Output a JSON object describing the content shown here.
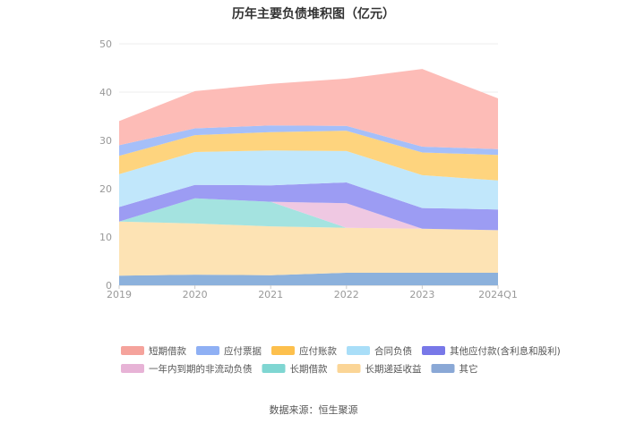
{
  "chart_data": {
    "type": "area",
    "stacked": true,
    "title": "历年主要负债堆积图（亿元）",
    "x": [
      "2019",
      "2020",
      "2021",
      "2022",
      "2023",
      "2024Q1"
    ],
    "ylim": [
      0,
      50
    ],
    "yticks": [
      0,
      10,
      20,
      30,
      40,
      50
    ],
    "grid": true,
    "legend_position": "bottom",
    "series": [
      {
        "name": "其它",
        "color": "#8cb1dc",
        "values": [
          2.0,
          2.2,
          2.1,
          2.6,
          2.6,
          2.6
        ]
      },
      {
        "name": "长期递延收益",
        "color": "#fde3b4",
        "values": [
          11.2,
          10.6,
          10.1,
          9.3,
          9.1,
          8.8
        ]
      },
      {
        "name": "长期借款",
        "color": "#a4e3e0",
        "values": [
          0.0,
          5.2,
          5.1,
          0.0,
          0.0,
          0.0
        ]
      },
      {
        "name": "一年内到期的非流动负债",
        "color": "#efc8e2",
        "values": [
          0.0,
          0.0,
          0.0,
          5.1,
          0.0,
          0.0
        ]
      },
      {
        "name": "其他应付款(含利息和股利)",
        "color": "#9c9cf3",
        "values": [
          3.0,
          2.8,
          3.4,
          4.3,
          4.3,
          4.3
        ]
      },
      {
        "name": "合同负债",
        "color": "#c1e7fb",
        "values": [
          6.8,
          6.8,
          7.2,
          6.5,
          6.8,
          6.0
        ]
      },
      {
        "name": "应付账款",
        "color": "#fed47e",
        "values": [
          3.8,
          3.5,
          3.8,
          4.2,
          4.7,
          5.3
        ]
      },
      {
        "name": "应付票据",
        "color": "#a5bff9",
        "values": [
          2.2,
          1.4,
          1.4,
          1.0,
          1.2,
          1.2
        ]
      },
      {
        "name": "短期借款",
        "color": "#fdbcb7",
        "values": [
          5.0,
          7.7,
          8.6,
          9.8,
          16.1,
          10.5
        ]
      }
    ]
  },
  "legend": {
    "order": [
      "短期借款",
      "应付票据",
      "应付账款",
      "合同负债",
      "其他应付款(含利息和股利)",
      "一年内到期的非流动负债",
      "长期借款",
      "长期递延收益",
      "其它"
    ],
    "swatch_colors": {
      "短期借款": "#f5a39c",
      "应付票据": "#8fb0f4",
      "应付账款": "#fdc04d",
      "合同负债": "#a9def8",
      "其他应付款(含利息和股利)": "#7878e8",
      "一年内到期的非流动负债": "#e7b3d6",
      "长期借款": "#7fd6d2",
      "长期递延收益": "#fbd596",
      "其它": "#8aa8d6"
    }
  },
  "source_text": "数据来源：恒生聚源"
}
